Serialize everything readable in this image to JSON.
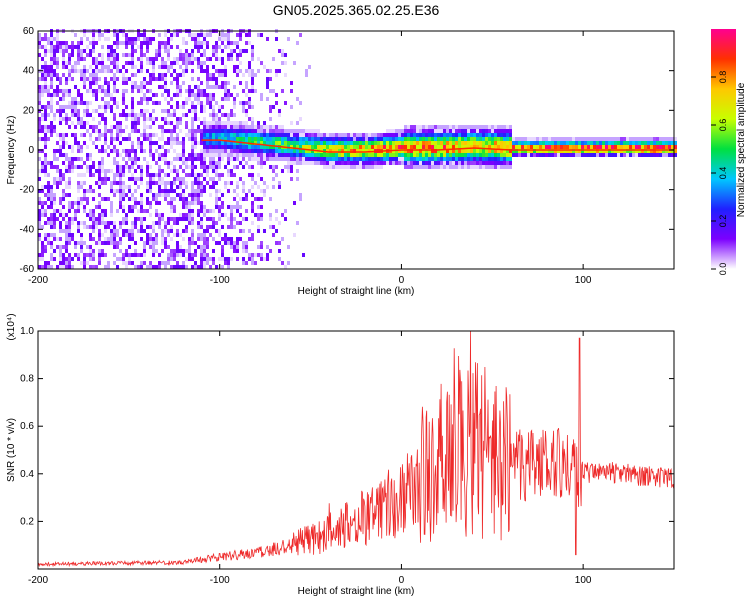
{
  "title": "GN05.2025.365.02.25.E36",
  "chart_data": [
    {
      "type": "heatmap",
      "xlabel": "Height of straight line (km)",
      "ylabel": "Frequency (Hz)",
      "xlim": [
        -200,
        150
      ],
      "ylim": [
        -60,
        60
      ],
      "xticks": [
        -200,
        -100,
        0,
        100
      ],
      "xtick_labels": [
        "-200",
        "-100",
        "0",
        "100"
      ],
      "yticks": [
        -60,
        -40,
        -20,
        0,
        20,
        40,
        60
      ],
      "ytick_labels": [
        "-60",
        "-40",
        "-20",
        "0",
        "20",
        "40",
        "60"
      ],
      "colorbar": {
        "label": "Normalized spectral amplitude",
        "range": [
          0,
          1
        ],
        "ticks": [
          0,
          0.2,
          0.4,
          0.6,
          0.8
        ],
        "tick_labels": [
          "0.0",
          "0.2",
          "0.4",
          "0.6",
          "0.8"
        ],
        "colormap": [
          "#ffffff",
          "#7c00ff",
          "#2020ff",
          "#00c8ff",
          "#00e040",
          "#c8ff00",
          "#ffc800",
          "#ff3000",
          "#ff0090"
        ]
      },
      "ridge": {
        "x": [
          -110,
          -100,
          -80,
          -60,
          -40,
          -20,
          0,
          20,
          40,
          60,
          80,
          100,
          150
        ],
        "freq": [
          5,
          5,
          3,
          1,
          -1,
          -1,
          0,
          0,
          1,
          0,
          0,
          0,
          0
        ],
        "peak_amplitude": [
          0.35,
          0.4,
          0.5,
          0.55,
          0.7,
          0.8,
          0.85,
          0.8,
          0.75,
          0.8,
          0.85,
          0.9,
          0.95
        ]
      }
    },
    {
      "type": "line",
      "xlabel": "Height of straight line (km)",
      "ylabel": "SNR (10 * v/v)",
      "yscale_label": "(x10⁴)",
      "xlim": [
        -200,
        150
      ],
      "ylim": [
        0,
        1.0
      ],
      "xticks": [
        -200,
        -100,
        0,
        100
      ],
      "xtick_labels": [
        "-200",
        "-100",
        "0",
        "100"
      ],
      "yticks": [
        0.2,
        0.4,
        0.6,
        0.8,
        1.0
      ],
      "ytick_labels": [
        "0.2",
        "0.4",
        "0.6",
        "0.8",
        "1.0"
      ],
      "color": "#ee2a2a",
      "envelope": {
        "x": [
          -200,
          -150,
          -120,
          -100,
          -80,
          -60,
          -40,
          -20,
          0,
          10,
          20,
          30,
          38,
          42,
          50,
          60,
          70,
          80,
          90,
          96,
          98,
          100,
          110,
          130,
          150
        ],
        "y": [
          0.02,
          0.025,
          0.03,
          0.05,
          0.07,
          0.1,
          0.15,
          0.22,
          0.3,
          0.36,
          0.42,
          0.48,
          0.5,
          0.5,
          0.46,
          0.44,
          0.43,
          0.44,
          0.45,
          0.42,
          0.3,
          0.4,
          0.41,
          0.39,
          0.38
        ]
      },
      "spikes": [
        {
          "x": 38,
          "y": 1.0
        },
        {
          "x": 41,
          "y": 0.75
        },
        {
          "x": 98,
          "y": 0.97
        },
        {
          "x": 96,
          "y": 0.06
        }
      ]
    }
  ]
}
